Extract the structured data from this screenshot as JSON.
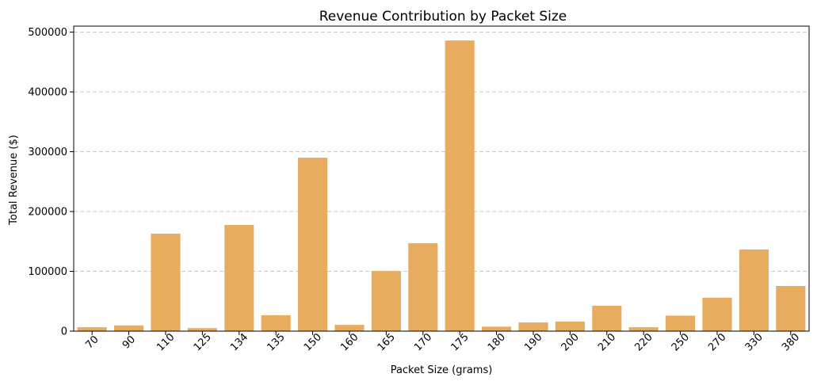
{
  "chart_data": {
    "type": "bar",
    "title": "Revenue Contribution by Packet Size",
    "xlabel": "Packet Size (grams)",
    "ylabel": "Total Revenue ($)",
    "categories": [
      "70",
      "90",
      "110",
      "125",
      "134",
      "135",
      "150",
      "160",
      "165",
      "170",
      "175",
      "180",
      "190",
      "200",
      "210",
      "220",
      "250",
      "270",
      "330",
      "380"
    ],
    "values": [
      6500,
      9500,
      163000,
      5000,
      177500,
      26500,
      290000,
      10500,
      100500,
      147000,
      486000,
      7500,
      14500,
      16000,
      42500,
      6500,
      26000,
      56000,
      136500,
      75500
    ],
    "ylim": [
      0,
      510000
    ],
    "yticks": [
      "0",
      "100000",
      "200000",
      "300000",
      "400000",
      "500000"
    ],
    "ytick_values": [
      0,
      100000,
      200000,
      300000,
      400000,
      500000
    ],
    "grid": "y-dashed",
    "bar_color": "#E8AC5F",
    "grid_color": "#c8c8c8"
  }
}
